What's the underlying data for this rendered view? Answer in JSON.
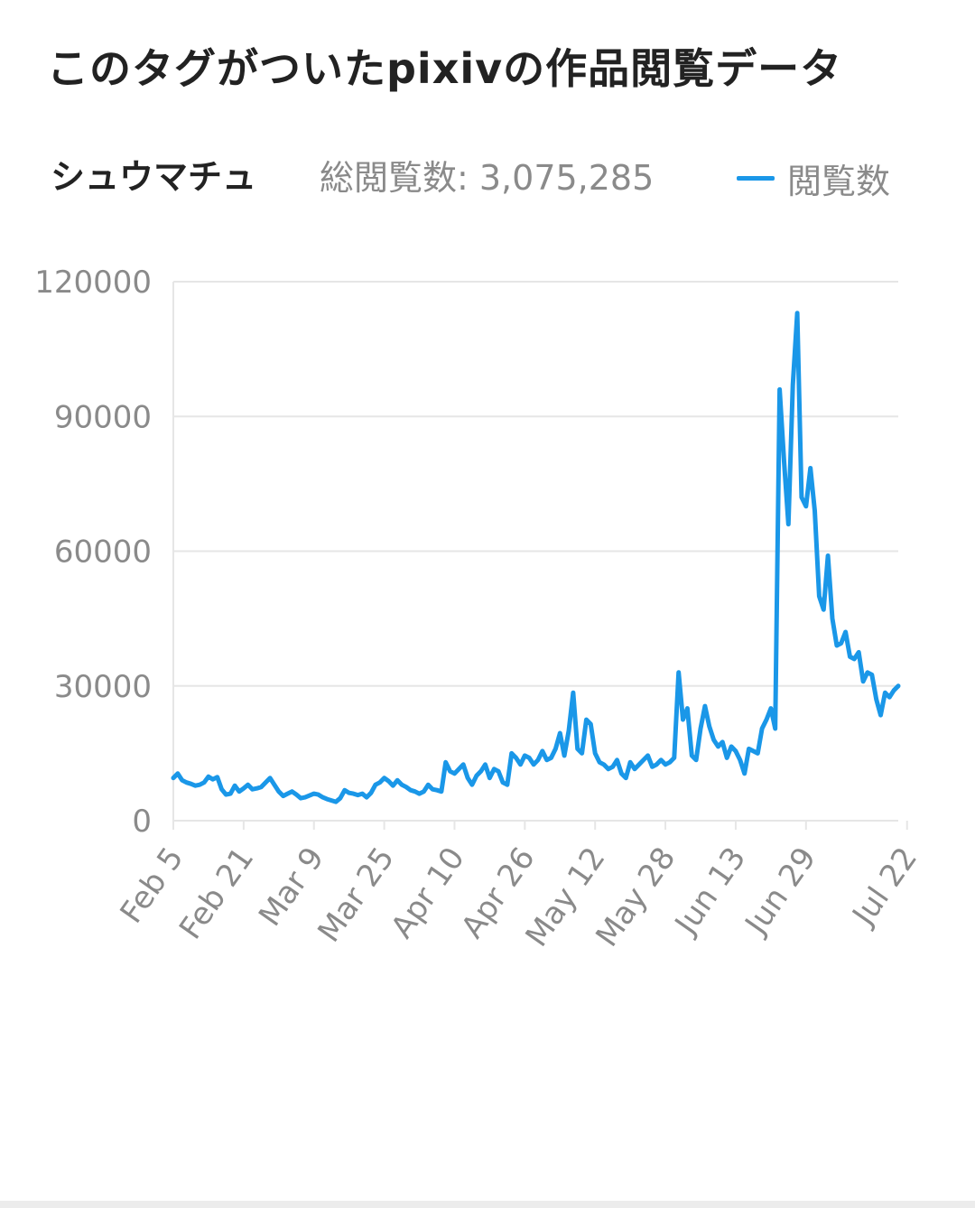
{
  "page": {
    "title": "このタグがついたpixivの作品閲覧データ"
  },
  "tag": {
    "name": "シュウマチュ",
    "total_label": "総閲覧数: 3,075,285"
  },
  "colors": {
    "series": "#1a97e8",
    "grid": "#e6e6e6",
    "text": "#8a8a8a"
  },
  "chart_data": {
    "type": "line",
    "legend": {
      "position": "top-right",
      "entries": [
        "閲覧数"
      ]
    },
    "grid": true,
    "ylim": [
      0,
      120000
    ],
    "yticks": [
      0,
      30000,
      60000,
      90000,
      120000
    ],
    "x_start": "Feb 5",
    "xticks": [
      {
        "label": "Feb 5",
        "day": 0
      },
      {
        "label": "Feb 21",
        "day": 16
      },
      {
        "label": "Mar 9",
        "day": 32
      },
      {
        "label": "Mar 25",
        "day": 48
      },
      {
        "label": "Apr 10",
        "day": 64
      },
      {
        "label": "Apr 26",
        "day": 80
      },
      {
        "label": "May 12",
        "day": 96
      },
      {
        "label": "May 28",
        "day": 112
      },
      {
        "label": "Jun 13",
        "day": 128
      },
      {
        "label": "Jun 29",
        "day": 144
      },
      {
        "label": "Jul 22",
        "day": 167
      }
    ],
    "series": [
      {
        "name": "閲覧数",
        "values": [
          9500,
          10500,
          9000,
          8500,
          8200,
          7800,
          8000,
          8500,
          9800,
          9200,
          9700,
          7000,
          5800,
          6000,
          7800,
          6500,
          7200,
          8000,
          7000,
          7200,
          7500,
          8500,
          9500,
          8000,
          6500,
          5500,
          6000,
          6500,
          5800,
          5000,
          5200,
          5600,
          6000,
          5800,
          5200,
          4800,
          4500,
          4200,
          5000,
          6800,
          6200,
          6000,
          5700,
          6000,
          5200,
          6200,
          8000,
          8500,
          9500,
          8800,
          7800,
          9000,
          8000,
          7500,
          6800,
          6500,
          6000,
          6500,
          8000,
          7000,
          6800,
          6500,
          13000,
          11000,
          10500,
          11500,
          12500,
          9500,
          8000,
          10000,
          11000,
          12500,
          9500,
          11500,
          11000,
          8500,
          8000,
          15000,
          14000,
          12500,
          14500,
          14000,
          12500,
          13500,
          15500,
          13500,
          14000,
          16000,
          19500,
          14500,
          20000,
          28500,
          16000,
          15000,
          22500,
          21500,
          15000,
          13000,
          12500,
          11500,
          12000,
          13500,
          10500,
          9500,
          13000,
          11500,
          12500,
          13500,
          14500,
          12000,
          12500,
          13500,
          12500,
          13000,
          14000,
          33000,
          22500,
          25000,
          14500,
          13500,
          20500,
          25500,
          21000,
          18000,
          16500,
          17500,
          14000,
          16500,
          15500,
          13500,
          10500,
          16000,
          15500,
          15000,
          20500,
          22500,
          25000,
          20500,
          96000,
          80000,
          66000,
          97000,
          113000,
          72000,
          70000,
          78500,
          69000,
          50000,
          47000,
          59000,
          45000,
          39000,
          39500,
          42000,
          36500,
          36000,
          37500,
          31000,
          33000,
          32500,
          27000,
          23500,
          28500,
          27500,
          29000,
          30000
        ]
      }
    ]
  }
}
